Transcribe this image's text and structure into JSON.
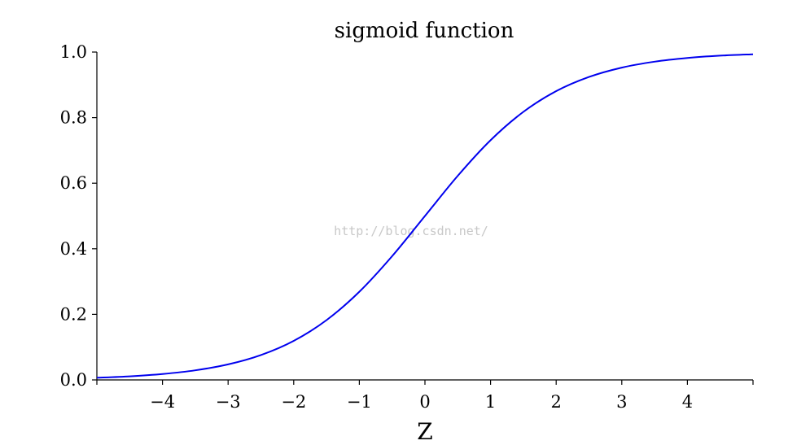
{
  "watermark": "http://blog.csdn.net/",
  "chart_data": {
    "type": "line",
    "title": "sigmoid function",
    "xlabel": "Z",
    "ylabel": "",
    "xlim": [
      -5,
      5
    ],
    "ylim": [
      0,
      1
    ],
    "xticks": [
      -4,
      -3,
      -2,
      -1,
      0,
      1,
      2,
      3,
      4
    ],
    "xtick_labels": [
      "−4",
      "−3",
      "−2",
      "−1",
      "0",
      "1",
      "2",
      "3",
      "4"
    ],
    "yticks": [
      0.0,
      0.2,
      0.4,
      0.6,
      0.8,
      1.0
    ],
    "ytick_labels": [
      "0.0",
      "0.2",
      "0.4",
      "0.6",
      "0.8",
      "1.0"
    ],
    "grid": false,
    "series": [
      {
        "color": "#0000ee",
        "x": [
          -5,
          -4.5,
          -4,
          -3.5,
          -3,
          -2.5,
          -2,
          -1.5,
          -1,
          -0.5,
          0,
          0.5,
          1,
          1.5,
          2,
          2.5,
          3,
          3.5,
          4,
          4.5,
          5
        ],
        "y": [
          0.0067,
          0.011,
          0.018,
          0.0293,
          0.0474,
          0.0759,
          0.1192,
          0.1824,
          0.2689,
          0.3775,
          0.5,
          0.6225,
          0.7311,
          0.8176,
          0.8808,
          0.9241,
          0.9526,
          0.9707,
          0.982,
          0.989,
          0.9933
        ]
      }
    ]
  }
}
